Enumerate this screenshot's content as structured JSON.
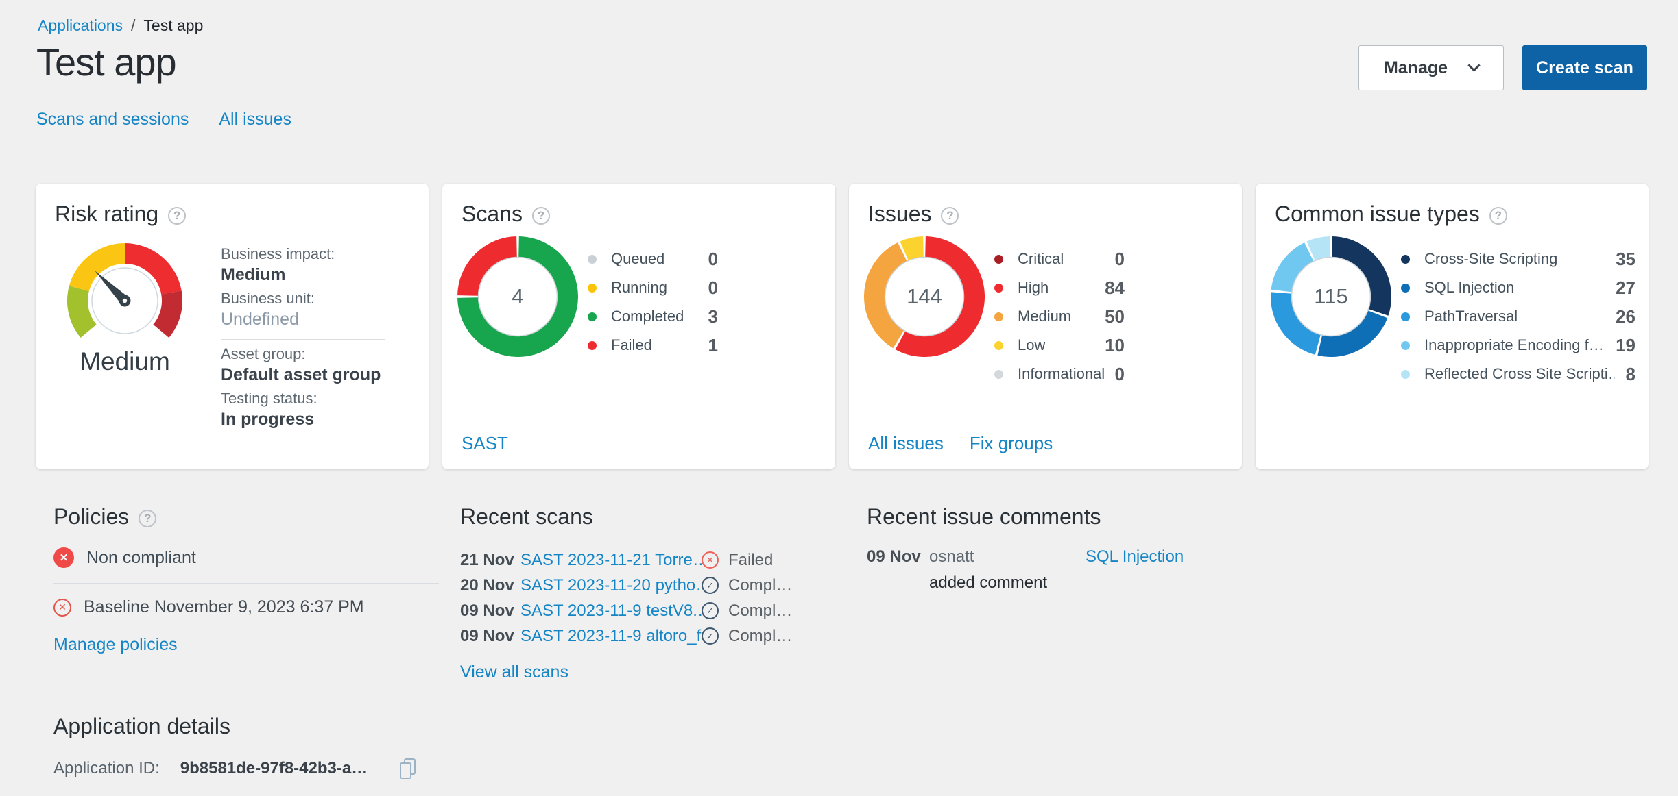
{
  "page": {
    "breadcrumb": {
      "parent": "Applications",
      "separator": "/",
      "current": "Test app"
    },
    "title": "Test app",
    "nav": {
      "scans_sessions": "Scans and sessions",
      "all_issues": "All issues"
    },
    "actions": {
      "manage": "Manage",
      "create_scan": "Create scan"
    }
  },
  "cards": {
    "risk_rating": {
      "title": "Risk rating",
      "fields": {
        "impact_label": "Business impact:",
        "impact_value": "Medium",
        "unit_label": "Business unit:",
        "unit_value": "Undefined",
        "asset_label": "Asset group:",
        "asset_value": "Default asset group",
        "testing_label": "Testing status:",
        "testing_value": "In progress"
      }
    },
    "scans": {
      "title": "Scans",
      "link": "SAST"
    },
    "issues": {
      "title": "Issues",
      "links": {
        "all_issues": "All issues",
        "fix_groups": "Fix groups"
      }
    },
    "common_issue_types": {
      "title": "Common issue types"
    }
  },
  "policies": {
    "title": "Policies",
    "status": "Non compliant",
    "baseline": "Baseline November 9, 2023 6:37 PM",
    "manage_link": "Manage policies"
  },
  "recent_scans": {
    "title": "Recent scans",
    "view_all_link": "View all scans",
    "rows": [
      {
        "date": "21 Nov",
        "name": "SAST 2023-11-21 Torre…",
        "status": "Failed",
        "status_icon": "failed"
      },
      {
        "date": "20 Nov",
        "name": "SAST 2023-11-20 pytho…",
        "status": "Compl…",
        "status_icon": "completed"
      },
      {
        "date": "09 Nov",
        "name": "SAST 2023-11-9 testV8.…",
        "status": "Compl…",
        "status_icon": "completed"
      },
      {
        "date": "09 Nov",
        "name": "SAST 2023-11-9 altoro_f…",
        "status": "Compl…",
        "status_icon": "completed"
      }
    ]
  },
  "recent_comments": {
    "title": "Recent issue comments",
    "rows": [
      {
        "date": "09 Nov",
        "user": "osnatt",
        "issue": "SQL Injection",
        "action": "added comment"
      }
    ]
  },
  "application_details": {
    "title": "Application details",
    "id_label": "Application ID:",
    "id_value": "9b8581de-97f8-42b3-a…"
  },
  "chart_data": [
    {
      "id": "scans-donut",
      "type": "pie",
      "title": "Scans",
      "center_label": "4",
      "legend_position": "right",
      "segments": [
        {
          "label": "Queued",
          "value": 0,
          "color": "#c9d1d6"
        },
        {
          "label": "Running",
          "value": 0,
          "color": "#fcc30b"
        },
        {
          "label": "Completed",
          "value": 3,
          "color": "#17a64e"
        },
        {
          "label": "Failed",
          "value": 1,
          "color": "#ee2c30"
        }
      ]
    },
    {
      "id": "issues-donut",
      "type": "pie",
      "title": "Issues",
      "center_label": "144",
      "legend_position": "right",
      "segments": [
        {
          "label": "Critical",
          "value": 0,
          "color": "#a91e24"
        },
        {
          "label": "High",
          "value": 84,
          "color": "#ee2c30"
        },
        {
          "label": "Medium",
          "value": 50,
          "color": "#f5a540"
        },
        {
          "label": "Low",
          "value": 10,
          "color": "#fcd22f"
        },
        {
          "label": "Informational",
          "value": 0,
          "color": "#d2d8dc"
        }
      ]
    },
    {
      "id": "types-donut",
      "type": "pie",
      "title": "Common issue types",
      "center_label": "115",
      "legend_position": "right",
      "segments": [
        {
          "label": "Cross-Site Scripting",
          "value": 35,
          "color": "#14355e"
        },
        {
          "label": "SQL Injection",
          "value": 27,
          "color": "#0f6fb6"
        },
        {
          "label": "PathTraversal",
          "value": 26,
          "color": "#2b99de"
        },
        {
          "label": "Inappropriate Encoding f…",
          "value": 19,
          "color": "#70c8f0"
        },
        {
          "label": "Reflected Cross Site Scripti…",
          "value": 8,
          "color": "#b5e4f7"
        }
      ]
    },
    {
      "id": "risk-gauge",
      "type": "gauge",
      "title": "Risk rating",
      "value_label": "Medium",
      "start_angle": 230,
      "total_sweep": 260,
      "needle_angle": 315,
      "segments": [
        {
          "label": "low",
          "sweep": 55,
          "color": "#a2c12c"
        },
        {
          "label": "medium",
          "sweep": 75,
          "color": "#fbc613"
        },
        {
          "label": "high",
          "sweep": 80,
          "color": "#ed2d30"
        },
        {
          "label": "critical",
          "sweep": 50,
          "color": "#c12b31"
        }
      ]
    }
  ]
}
